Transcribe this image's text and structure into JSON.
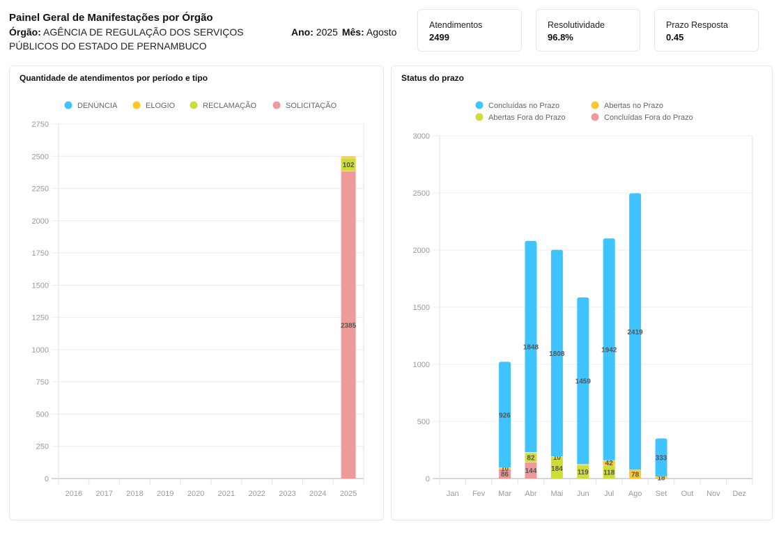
{
  "header": {
    "title": "Painel Geral de Manifestações por Órgão",
    "orgao_label": "Órgão:",
    "orgao_value": "AGÊNCIA DE REGULAÇÃO DOS SERVIÇOS PÚBLICOS DO ESTADO DE PERNAMBUCO",
    "ano_label": "Ano:",
    "ano_value": "2025",
    "mes_label": "Mês:",
    "mes_value": "Agosto"
  },
  "kpis": [
    {
      "label": "Atendimentos",
      "value": "2499"
    },
    {
      "label": "Resolutividade",
      "value": "96.8%"
    },
    {
      "label": "Prazo Resposta",
      "value": "0.45"
    }
  ],
  "colors": {
    "blue": "#40c4ff",
    "yellow": "#ffc72c",
    "green": "#cddc39",
    "pink": "#ef9a9a",
    "grid": "#ececec",
    "axis_text": "#9a9a9a"
  },
  "chart_data": [
    {
      "type": "bar",
      "stacked": true,
      "title": "Quantidade de atendimentos por período e tipo",
      "xlabel": "",
      "ylabel": "",
      "categories": [
        "2016",
        "2017",
        "2018",
        "2019",
        "2020",
        "2021",
        "2022",
        "2023",
        "2024",
        "2025"
      ],
      "ylim": [
        0,
        2750
      ],
      "yticks": [
        0,
        250,
        500,
        750,
        1000,
        1250,
        1500,
        1750,
        2000,
        2250,
        2500,
        2750
      ],
      "grid": true,
      "legend_position": "top-center",
      "series": [
        {
          "name": "SOLICITAÇÃO",
          "color": "#ef9a9a",
          "values": [
            0,
            0,
            0,
            0,
            0,
            0,
            0,
            0,
            0,
            2385
          ]
        },
        {
          "name": "RECLAMAÇÃO",
          "color": "#cddc39",
          "values": [
            0,
            0,
            0,
            0,
            0,
            0,
            0,
            0,
            0,
            102
          ]
        },
        {
          "name": "ELOGIO",
          "color": "#ffc72c",
          "values": [
            0,
            0,
            0,
            0,
            0,
            0,
            0,
            0,
            0,
            12
          ]
        },
        {
          "name": "DENÚNCIA",
          "color": "#40c4ff",
          "values": [
            0,
            0,
            0,
            0,
            0,
            0,
            0,
            0,
            0,
            0
          ]
        }
      ],
      "legend_order": [
        "DENÚNCIA",
        "ELOGIO",
        "RECLAMAÇÃO",
        "SOLICITAÇÃO"
      ],
      "data_labels_min": 50
    },
    {
      "type": "bar",
      "stacked": true,
      "title": "Status do prazo",
      "xlabel": "",
      "ylabel": "",
      "categories": [
        "Jan",
        "Fev",
        "Mar",
        "Abr",
        "Mai",
        "Jun",
        "Jul",
        "Ago",
        "Set",
        "Out",
        "Nov",
        "Dez"
      ],
      "ylim": [
        0,
        3000
      ],
      "yticks": [
        0,
        500,
        1000,
        1500,
        2000,
        2500,
        3000
      ],
      "grid": true,
      "legend_position": "top-center",
      "series": [
        {
          "name": "Concluídas Fora do Prazo",
          "color": "#ef9a9a",
          "values": [
            0,
            0,
            86,
            144,
            0,
            0,
            0,
            0,
            0,
            0,
            0,
            0
          ]
        },
        {
          "name": "Abertas Fora do Prazo",
          "color": "#cddc39",
          "values": [
            0,
            0,
            0,
            82,
            184,
            119,
            118,
            0,
            0,
            0,
            0,
            0
          ]
        },
        {
          "name": "Abertas no Prazo",
          "color": "#ffc72c",
          "values": [
            0,
            0,
            10,
            6,
            10,
            7,
            42,
            78,
            18,
            0,
            0,
            0
          ]
        },
        {
          "name": "Concluídas no Prazo",
          "color": "#40c4ff",
          "values": [
            0,
            0,
            926,
            1848,
            1808,
            1459,
            1942,
            2419,
            333,
            0,
            0,
            0
          ]
        }
      ],
      "legend_order": [
        "Concluídas no Prazo",
        "Abertas no Prazo",
        "Abertas Fora do Prazo",
        "Concluídas Fora do Prazo"
      ],
      "data_labels_min": 9
    }
  ]
}
